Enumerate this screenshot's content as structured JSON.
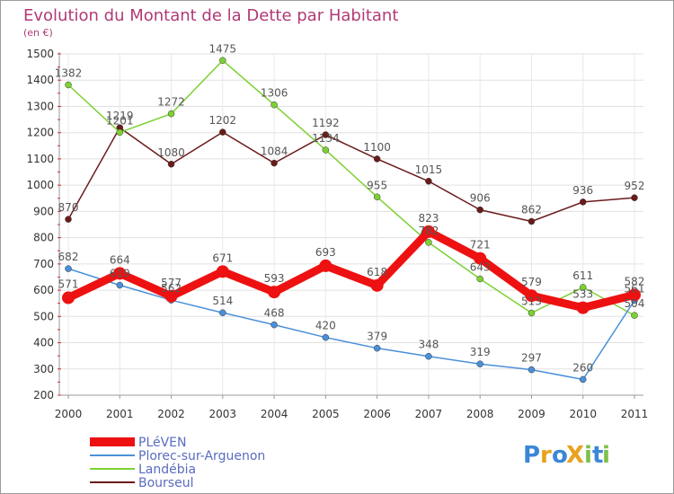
{
  "chart_data": {
    "type": "line",
    "title": "Evolution du Montant de la Dette par Habitant",
    "unit_label": "(en €)",
    "xlabel": "",
    "ylabel": "",
    "x": [
      "2000",
      "2001",
      "2002",
      "2003",
      "2004",
      "2005",
      "2006",
      "2007",
      "2008",
      "2009",
      "2010",
      "2011"
    ],
    "ylim": [
      200,
      1500
    ],
    "yticks": [
      200,
      300,
      400,
      500,
      600,
      700,
      800,
      900,
      1000,
      1100,
      1200,
      1300,
      1400,
      1500
    ],
    "grid": true,
    "legend_position": "bottom-left",
    "series": [
      {
        "name": "Bourseul",
        "color": "#6b1a1a",
        "values": [
          870,
          1219,
          1080,
          1202,
          1084,
          1192,
          1100,
          1015,
          906,
          862,
          936,
          952
        ],
        "labels": [
          "870",
          "1219",
          "1080",
          "1202",
          "1084",
          "1192",
          "1100",
          "1015",
          "906",
          "862",
          "936",
          "952"
        ]
      },
      {
        "name": "Landébia",
        "color": "#7cd133",
        "values": [
          1382,
          1201,
          1272,
          1475,
          1306,
          1134,
          955,
          782,
          643,
          513,
          611,
          504
        ],
        "labels": [
          "1382",
          "1201",
          "1272",
          "1475",
          "1306",
          "1134",
          "955",
          "782",
          "643",
          "513",
          "611",
          "504"
        ]
      },
      {
        "name": "Plorec-sur-Arguenon",
        "color": "#4a90d9",
        "values": [
          682,
          619,
          562,
          514,
          468,
          420,
          379,
          348,
          319,
          297,
          260,
          561
        ],
        "labels": [
          "682",
          "619",
          "562",
          "514",
          "468",
          "420",
          "379",
          "348",
          "319",
          "297",
          "260",
          "561"
        ]
      },
      {
        "name": "PLéVEN",
        "color": "#ee1111",
        "values": [
          571,
          664,
          577,
          671,
          593,
          693,
          618,
          823,
          721,
          579,
          533,
          582
        ],
        "labels": [
          "571",
          "664",
          "577",
          "671",
          "593",
          "693",
          "618",
          "823",
          "721",
          "579",
          "533",
          "582"
        ]
      }
    ],
    "legend_order": [
      "PLéVEN",
      "Plorec-sur-Arguenon",
      "Landébia",
      "Bourseul"
    ]
  },
  "brand": {
    "text": "ProXiti",
    "letters": [
      "P",
      "r",
      "o",
      "X",
      "i",
      "t",
      "i"
    ],
    "colors": [
      "#3b86d6",
      "#e8a21d",
      "#3b86d6",
      "#e8a21d",
      "#7cc04a",
      "#3b86d6",
      "#7cc04a"
    ]
  }
}
